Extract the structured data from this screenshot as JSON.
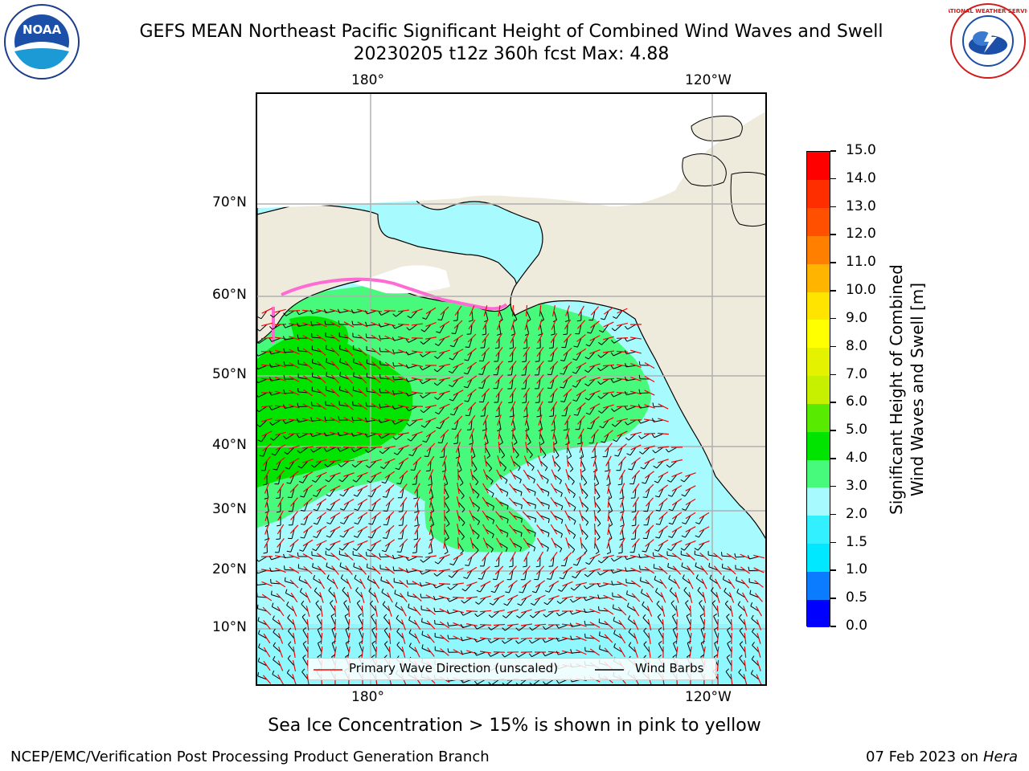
{
  "title_line1": "GEFS MEAN Northeast Pacific Significant Height of Combined Wind Waves and Swell",
  "title_line2": "20230205 t12z 360h fcst   Max: 4.88",
  "logos": {
    "left": "NOAA",
    "right": "NATIONAL WEATHER SERVICE"
  },
  "lon_labels_top": [
    "180°",
    "120°W"
  ],
  "lon_labels_bottom": [
    "180°",
    "120°W"
  ],
  "lat_labels": [
    "70°N",
    "60°N",
    "50°N",
    "40°N",
    "30°N",
    "20°N",
    "10°N"
  ],
  "colorbar": {
    "title": "Significant Height of Combined Wind Waves and Swell [m]",
    "ticks": [
      "0.0",
      "0.5",
      "1.0",
      "1.5",
      "2.0",
      "3.0",
      "4.0",
      "5.0",
      "6.0",
      "7.0",
      "8.0",
      "9.0",
      "10.0",
      "11.0",
      "12.0",
      "13.0",
      "14.0",
      "15.0"
    ],
    "colors": [
      "#0000ff",
      "#0b7cff",
      "#00e8ff",
      "#32f0ff",
      "#a7fbff",
      "#48fa7b",
      "#00e400",
      "#58ea00",
      "#c7f000",
      "#e4f200",
      "#ffff00",
      "#ffe400",
      "#ffb500",
      "#ff8000",
      "#ff5000",
      "#ff2e00",
      "#ff0000"
    ]
  },
  "legend": {
    "wave_dir": "Primary Wave Direction (unscaled)",
    "wind_barbs": "Wind Barbs",
    "wave_color": "#ff0000",
    "barb_color": "#000000"
  },
  "map_colors": {
    "land": "#efebdc",
    "ocean_low": "#a7fbff",
    "ocean_mid": "#48fa7b",
    "ocean_high": "#00e400",
    "ice": "#ff6ad5"
  },
  "sea_ice_note": "Sea Ice Concentration > 15% is shown in pink to yellow",
  "footer_left": "NCEP/EMC/Verification Post Processing Product Generation Branch",
  "footer_date": "07 Feb 2023 on",
  "footer_host": "Hera"
}
